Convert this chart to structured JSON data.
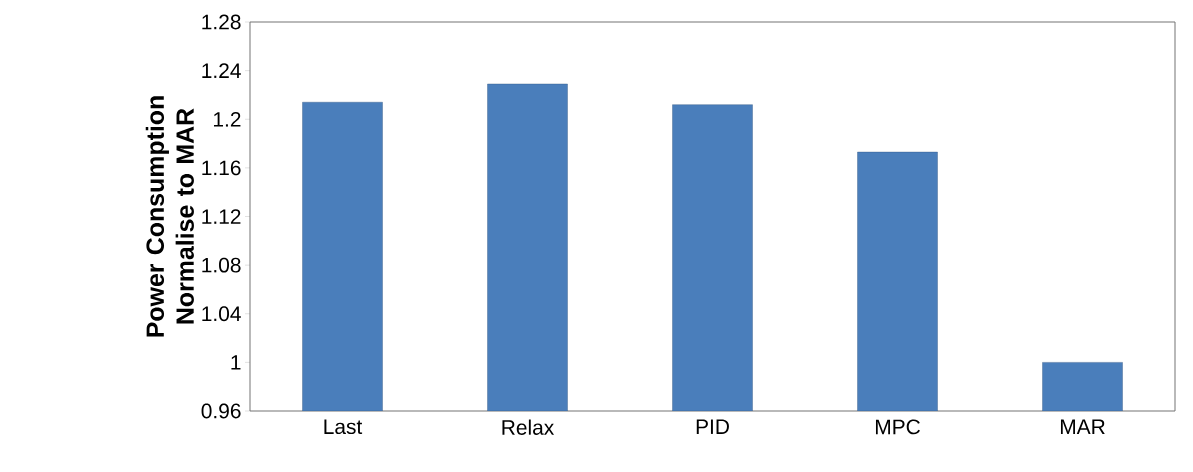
{
  "chart_data": {
    "type": "bar",
    "ylabel": "Power Consumption Normalise to MAR",
    "categories": [
      "Last",
      "Relax",
      "PID",
      "MPC",
      "MAR"
    ],
    "values": [
      1.214,
      1.229,
      1.212,
      1.173,
      1.0
    ],
    "color": "#4a7ebb",
    "ylim": [
      0.96,
      1.28
    ],
    "yticks": [
      0.96,
      1,
      1.04,
      1.08,
      1.12,
      1.16,
      1.2,
      1.24,
      1.28
    ],
    "grid": false
  }
}
